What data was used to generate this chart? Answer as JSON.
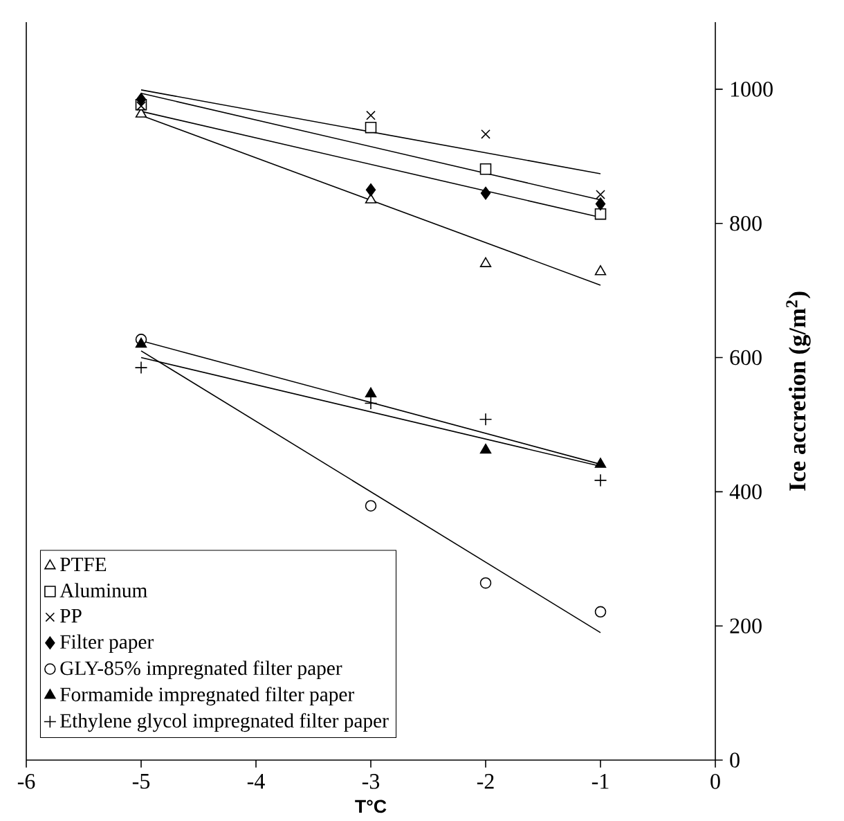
{
  "chart_data": {
    "type": "scatter",
    "xlabel": "T°C",
    "ylabel": "Ice accretion (g/m$^{2}$)",
    "xlim": [
      -6,
      0
    ],
    "xticks": [
      -6,
      -5,
      -4,
      -3,
      -2,
      -1,
      0
    ],
    "ylim": [
      0,
      1100
    ],
    "yticks": [
      0,
      200,
      400,
      600,
      800,
      1000
    ],
    "grid": false,
    "legend": "bottom left",
    "series": [
      {
        "name": "PTFE",
        "color": "#000000",
        "marker": "triangle",
        "x": [
          -5,
          -3,
          -2,
          -1
        ],
        "values": [
          963,
          835,
          740,
          728
        ]
      },
      {
        "name": "Aluminum",
        "color": "#000000",
        "marker": "square",
        "x": [
          -5,
          -3,
          -2,
          -1
        ],
        "values": [
          977,
          943,
          881,
          814
        ]
      },
      {
        "name": "PP",
        "color": "#000000",
        "marker": "cross",
        "x": [
          -5,
          -3,
          -2,
          -1
        ],
        "values": [
          975,
          961,
          933,
          843
        ]
      },
      {
        "name": "Filter paper",
        "color": "#000000",
        "marker": "diamond",
        "x": [
          -5,
          -3,
          -2,
          -1
        ],
        "values": [
          985,
          850,
          845,
          829
        ]
      },
      {
        "name": "GLY-85% impregnated filter paper",
        "color": "#000000",
        "marker": "circle",
        "x": [
          -5,
          -3,
          -2,
          -1
        ],
        "values": [
          627,
          379,
          264,
          221
        ]
      },
      {
        "name": "Formamide impregnated filter paper",
        "color": "#000000",
        "marker": "triangle",
        "x": [
          -5,
          -3,
          -2,
          -1
        ],
        "values": [
          620,
          546,
          462,
          441
        ]
      },
      {
        "name": "Ethylene glycol impregnated filter paper",
        "color": "#000000",
        "marker": "plus",
        "x": [
          -5,
          -3,
          -2,
          -1
        ],
        "values": [
          585,
          532,
          508,
          417
        ]
      },
      {
        "type": "line",
        "color": "#000000",
        "marker": "none",
        "x": [
          -5,
          -1
        ],
        "values": [
          961,
          708
        ]
      },
      {
        "type": "line",
        "color": "#000000",
        "marker": "none",
        "x": [
          -5,
          -1
        ],
        "values": [
          994,
          835
        ]
      },
      {
        "type": "line",
        "color": "#000000",
        "marker": "none",
        "x": [
          -5,
          -1
        ],
        "values": [
          999,
          874
        ]
      },
      {
        "type": "line",
        "color": "#000000",
        "marker": "none",
        "x": [
          -5,
          -1
        ],
        "values": [
          967,
          809
        ]
      },
      {
        "type": "line",
        "color": "#000000",
        "marker": "none",
        "x": [
          -5,
          -1
        ],
        "values": [
          610,
          190
        ]
      },
      {
        "type": "line",
        "color": "#000000",
        "marker": "none",
        "x": [
          -5,
          -1
        ],
        "values": [
          625,
          441
        ]
      },
      {
        "type": "line",
        "color": "#000000",
        "marker": "none",
        "x": [
          -5,
          -1
        ],
        "values": [
          600,
          438
        ]
      }
    ]
  }
}
